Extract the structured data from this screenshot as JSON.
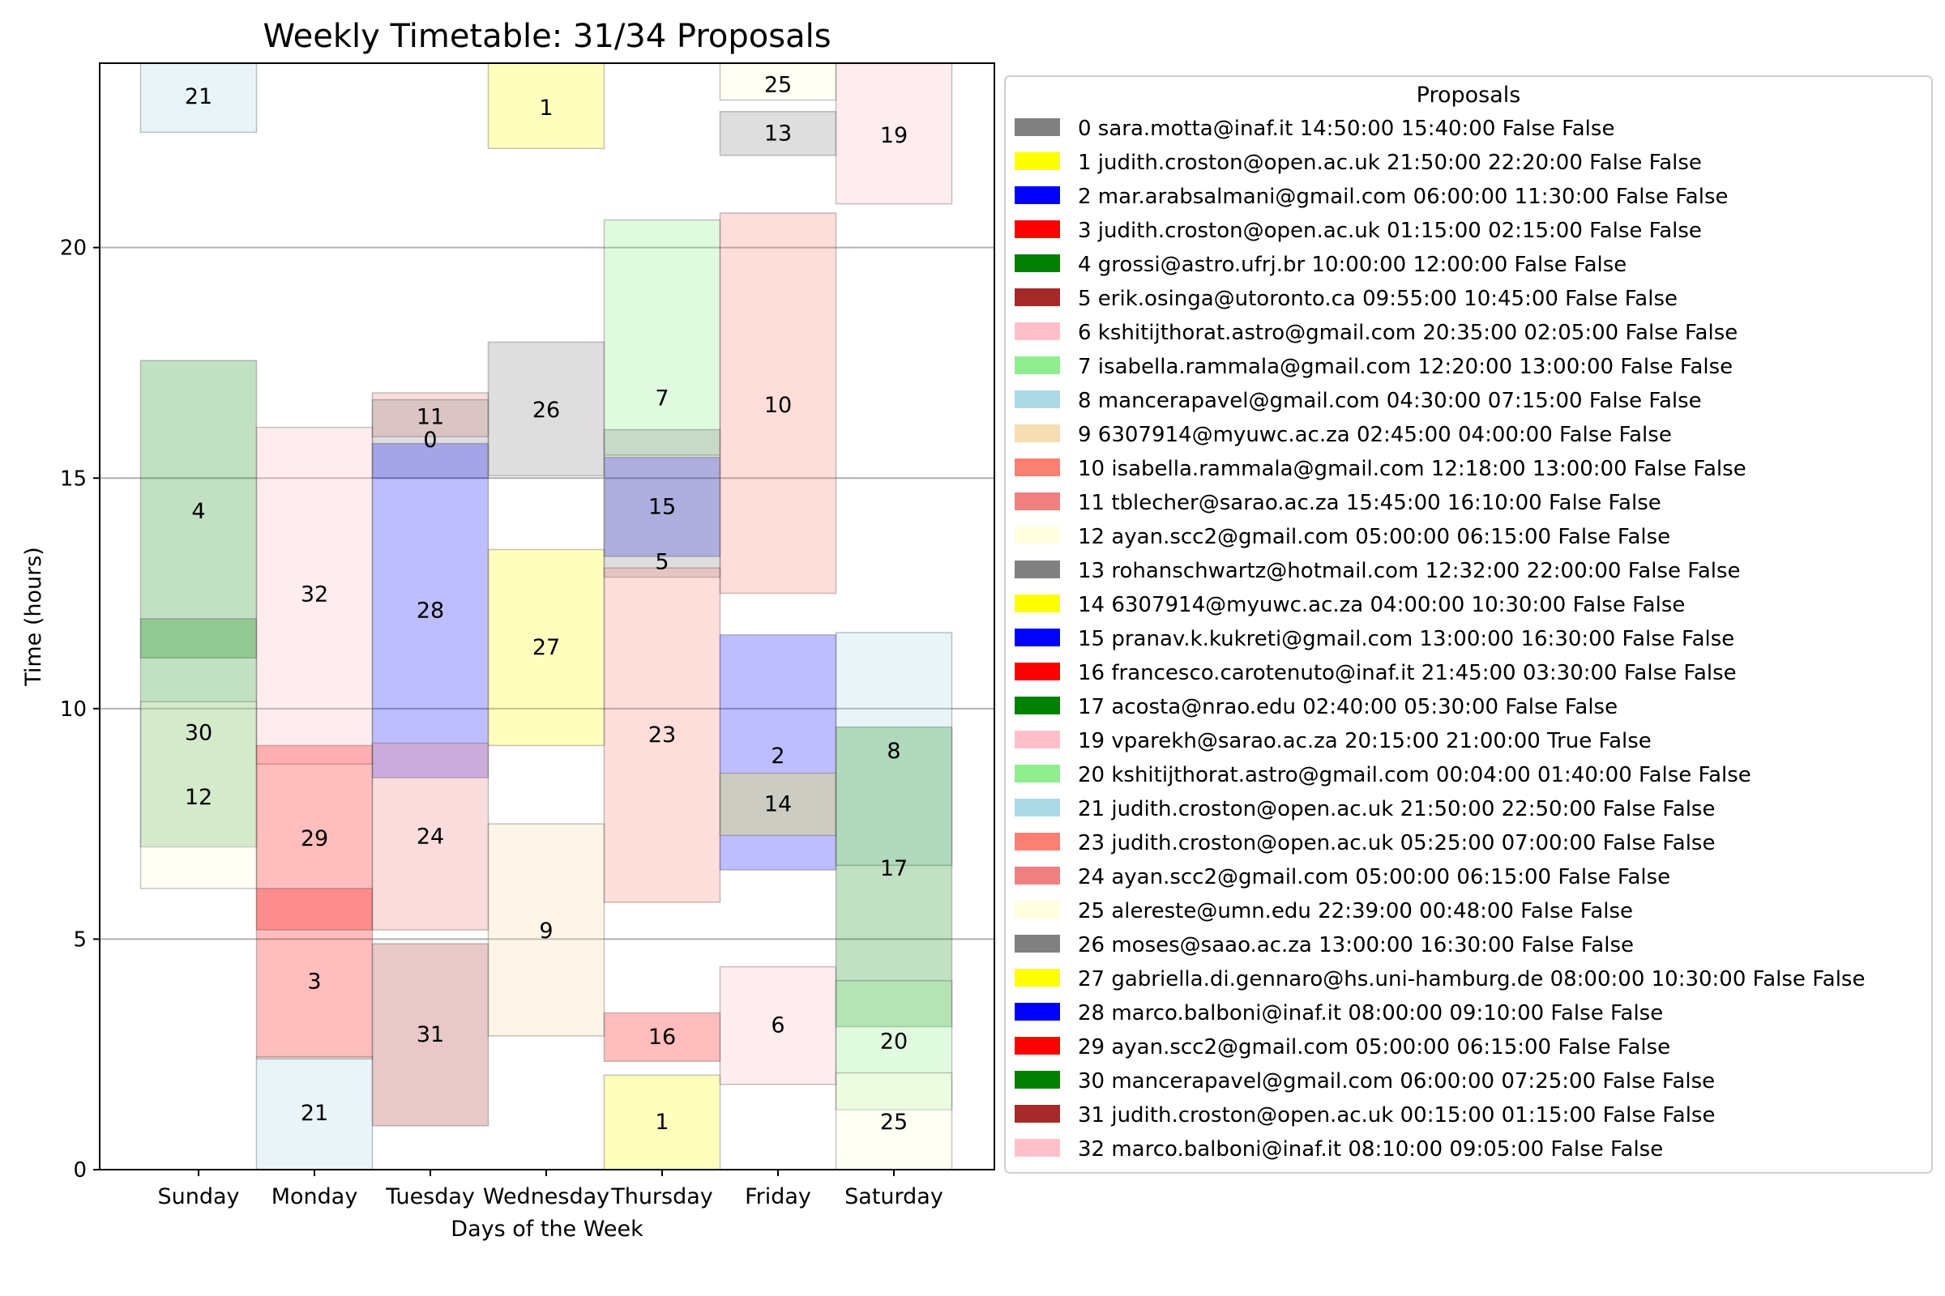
{
  "chart_data": {
    "type": "bar",
    "title": "Weekly Timetable: 31/34 Proposals",
    "xlabel": "Days of the Week",
    "ylabel": "Time (hours)",
    "ylim": [
      0,
      24
    ],
    "yticks": [
      0,
      5,
      10,
      15,
      20
    ],
    "grid": "horizontal",
    "categories": [
      "Sunday",
      "Monday",
      "Tuesday",
      "Wednesday",
      "Thursday",
      "Friday",
      "Saturday"
    ],
    "legend": {
      "title": "Proposals",
      "placement": "right",
      "entries": [
        {
          "color": "#808080",
          "label": "0 sara.motta@inaf.it 14:50:00 15:40:00 False False"
        },
        {
          "color": "#ffff00",
          "label": "1 judith.croston@open.ac.uk 21:50:00 22:20:00 False False"
        },
        {
          "color": "#0000ff",
          "label": "2 mar.arabsalmani@gmail.com 06:00:00 11:30:00 False False"
        },
        {
          "color": "#ff0000",
          "label": "3 judith.croston@open.ac.uk 01:15:00 02:15:00 False False"
        },
        {
          "color": "#008000",
          "label": "4 grossi@astro.ufrj.br 10:00:00 12:00:00 False False"
        },
        {
          "color": "#a52a2a",
          "label": "5 erik.osinga@utoronto.ca 09:55:00 10:45:00 False False"
        },
        {
          "color": "#ffc0cb",
          "label": "6 kshitijthorat.astro@gmail.com 20:35:00 02:05:00 False False"
        },
        {
          "color": "#90ee90",
          "label": "7 isabella.rammala@gmail.com 12:20:00 13:00:00 False False"
        },
        {
          "color": "#add8e6",
          "label": "8 mancerapavel@gmail.com 04:30:00 07:15:00 False False"
        },
        {
          "color": "#f5deb3",
          "label": "9 6307914@myuwc.ac.za 02:45:00 04:00:00 False False"
        },
        {
          "color": "#fa8072",
          "label": "10 isabella.rammala@gmail.com 12:18:00 13:00:00 False False"
        },
        {
          "color": "#f08080",
          "label": "11 tblecher@sarao.ac.za 15:45:00 16:10:00 False False"
        },
        {
          "color": "#ffffe0",
          "label": "12 ayan.scc2@gmail.com 05:00:00 06:15:00 False False"
        },
        {
          "color": "#808080",
          "label": "13 rohanschwartz@hotmail.com 12:32:00 22:00:00 False False"
        },
        {
          "color": "#ffff00",
          "label": "14 6307914@myuwc.ac.za 04:00:00 10:30:00 False False"
        },
        {
          "color": "#0000ff",
          "label": "15 pranav.k.kukreti@gmail.com 13:00:00 16:30:00 False False"
        },
        {
          "color": "#ff0000",
          "label": "16 francesco.carotenuto@inaf.it 21:45:00 03:30:00 False False"
        },
        {
          "color": "#008000",
          "label": "17 acosta@nrao.edu 02:40:00 05:30:00 False False"
        },
        {
          "color": "#ffc0cb",
          "label": "19 vparekh@sarao.ac.za 20:15:00 21:00:00 True False"
        },
        {
          "color": "#90ee90",
          "label": "20 kshitijthorat.astro@gmail.com 00:04:00 01:40:00 False False"
        },
        {
          "color": "#add8e6",
          "label": "21 judith.croston@open.ac.uk 21:50:00 22:50:00 False False"
        },
        {
          "color": "#fa8072",
          "label": "23 judith.croston@open.ac.uk 05:25:00 07:00:00 False False"
        },
        {
          "color": "#f08080",
          "label": "24 ayan.scc2@gmail.com 05:00:00 06:15:00 False False"
        },
        {
          "color": "#ffffe0",
          "label": "25 alereste@umn.edu 22:39:00 00:48:00 False False"
        },
        {
          "color": "#808080",
          "label": "26 moses@saao.ac.za 13:00:00 16:30:00 False False"
        },
        {
          "color": "#ffff00",
          "label": "27 gabriella.di.gennaro@hs.uni-hamburg.de 08:00:00 10:30:00 False False"
        },
        {
          "color": "#0000ff",
          "label": "28 marco.balboni@inaf.it 08:00:00 09:10:00 False False"
        },
        {
          "color": "#ff0000",
          "label": "29 ayan.scc2@gmail.com 05:00:00 06:15:00 False False"
        },
        {
          "color": "#008000",
          "label": "30 mancerapavel@gmail.com 06:00:00 07:25:00 False False"
        },
        {
          "color": "#a52a2a",
          "label": "31 judith.croston@open.ac.uk 00:15:00 01:15:00 False False"
        },
        {
          "color": "#ffc0cb",
          "label": "32 marco.balboni@inaf.it 08:10:00 09:05:00 False False"
        }
      ]
    },
    "blocks": [
      {
        "id": "21",
        "day": 0,
        "start": 22.5,
        "end": 24,
        "color": "#add8e6",
        "alpha": 0.28
      },
      {
        "id": "4",
        "day": 0,
        "start": 11.1,
        "end": 17.55,
        "color": "#008000",
        "alpha": 0.24
      },
      {
        "id": "30",
        "day": 0,
        "start": 7.0,
        "end": 11.95,
        "color": "#008000",
        "alpha": 0.24
      },
      {
        "id": "12",
        "day": 0,
        "start": 6.1,
        "end": 10.15,
        "color": "#ffffe0",
        "alpha": 0.3
      },
      {
        "id": "32",
        "day": 1,
        "start": 8.8,
        "end": 16.1,
        "color": "#ffc0cb",
        "alpha": 0.3
      },
      {
        "id": "29",
        "day": 1,
        "start": 5.2,
        "end": 9.2,
        "color": "#ff0000",
        "alpha": 0.26
      },
      {
        "id": "3",
        "day": 1,
        "start": 2.4,
        "end": 6.1,
        "color": "#ff0000",
        "alpha": 0.26
      },
      {
        "id": "21",
        "day": 1,
        "start": 0,
        "end": 2.45,
        "color": "#add8e6",
        "alpha": 0.28
      },
      {
        "id": "11",
        "day": 2,
        "start": 15.9,
        "end": 16.85,
        "color": "#f08080",
        "alpha": 0.28
      },
      {
        "id": "0",
        "day": 2,
        "start": 15.0,
        "end": 16.7,
        "color": "#808080",
        "alpha": 0.26
      },
      {
        "id": "28",
        "day": 2,
        "start": 8.5,
        "end": 15.75,
        "color": "#0000ff",
        "alpha": 0.26
      },
      {
        "id": "24",
        "day": 2,
        "start": 5.2,
        "end": 9.25,
        "color": "#f08080",
        "alpha": 0.28
      },
      {
        "id": "31",
        "day": 2,
        "start": 0.95,
        "end": 4.9,
        "color": "#a52a2a",
        "alpha": 0.26
      },
      {
        "id": "1",
        "day": 3,
        "start": 22.15,
        "end": 24,
        "color": "#ffff00",
        "alpha": 0.26
      },
      {
        "id": "26",
        "day": 3,
        "start": 15.05,
        "end": 17.95,
        "color": "#808080",
        "alpha": 0.26
      },
      {
        "id": "27",
        "day": 3,
        "start": 9.2,
        "end": 13.45,
        "color": "#ffff00",
        "alpha": 0.26
      },
      {
        "id": "9",
        "day": 3,
        "start": 2.9,
        "end": 7.5,
        "color": "#f5deb3",
        "alpha": 0.3
      },
      {
        "id": "7",
        "day": 4,
        "start": 15.5,
        "end": 20.6,
        "color": "#90ee90",
        "alpha": 0.28
      },
      {
        "id": "15",
        "day": 4,
        "start": 13.3,
        "end": 15.45,
        "color": "#0000ff",
        "alpha": 0.26
      },
      {
        "id": "5",
        "day": 4,
        "start": 12.85,
        "end": 16.05,
        "color": "#808080",
        "alpha": 0.26
      },
      {
        "id": "23",
        "day": 4,
        "start": 5.8,
        "end": 13.05,
        "color": "#fa8072",
        "alpha": 0.26
      },
      {
        "id": "16",
        "day": 4,
        "start": 2.35,
        "end": 3.4,
        "color": "#ff0000",
        "alpha": 0.26
      },
      {
        "id": "1",
        "day": 4,
        "start": 0,
        "end": 2.05,
        "color": "#ffff00",
        "alpha": 0.26
      },
      {
        "id": "25",
        "day": 5,
        "start": 23.2,
        "end": 24,
        "color": "#ffffe0",
        "alpha": 0.35
      },
      {
        "id": "13",
        "day": 5,
        "start": 22.0,
        "end": 22.95,
        "color": "#808080",
        "alpha": 0.26
      },
      {
        "id": "10",
        "day": 5,
        "start": 12.5,
        "end": 20.75,
        "color": "#fa8072",
        "alpha": 0.26
      },
      {
        "id": "2",
        "day": 5,
        "start": 6.5,
        "end": 11.6,
        "color": "#0000ff",
        "alpha": 0.26
      },
      {
        "id": "14",
        "day": 5,
        "start": 7.25,
        "end": 8.6,
        "color": "#ffff00",
        "alpha": 0.24
      },
      {
        "id": "6",
        "day": 5,
        "start": 1.85,
        "end": 4.4,
        "color": "#ffc0cb",
        "alpha": 0.3
      },
      {
        "id": "19",
        "day": 6,
        "start": 20.95,
        "end": 24,
        "color": "#ffc0cb",
        "alpha": 0.3
      },
      {
        "id": "8",
        "day": 6,
        "start": 6.6,
        "end": 11.65,
        "color": "#add8e6",
        "alpha": 0.28
      },
      {
        "id": "17",
        "day": 6,
        "start": 3.1,
        "end": 9.6,
        "color": "#008000",
        "alpha": 0.24
      },
      {
        "id": "20",
        "day": 6,
        "start": 1.3,
        "end": 4.1,
        "color": "#90ee90",
        "alpha": 0.28
      },
      {
        "id": "25",
        "day": 6,
        "start": 0,
        "end": 2.1,
        "color": "#ffffe0",
        "alpha": 0.35
      }
    ],
    "block_labels": [
      {
        "text": "21",
        "day": 0,
        "y": 23.3
      },
      {
        "text": "4",
        "day": 0,
        "y": 14.3
      },
      {
        "text": "30",
        "day": 0,
        "y": 9.5
      },
      {
        "text": "12",
        "day": 0,
        "y": 8.1
      },
      {
        "text": "32",
        "day": 1,
        "y": 12.5
      },
      {
        "text": "29",
        "day": 1,
        "y": 7.2
      },
      {
        "text": "3",
        "day": 1,
        "y": 4.1
      },
      {
        "text": "21",
        "day": 1,
        "y": 1.25
      },
      {
        "text": "11",
        "day": 2,
        "y": 16.35
      },
      {
        "text": "0",
        "day": 2,
        "y": 15.85
      },
      {
        "text": "28",
        "day": 2,
        "y": 12.15
      },
      {
        "text": "24",
        "day": 2,
        "y": 7.25
      },
      {
        "text": "31",
        "day": 2,
        "y": 2.95
      },
      {
        "text": "1",
        "day": 3,
        "y": 23.05
      },
      {
        "text": "26",
        "day": 3,
        "y": 16.5
      },
      {
        "text": "27",
        "day": 3,
        "y": 11.35
      },
      {
        "text": "9",
        "day": 3,
        "y": 5.2
      },
      {
        "text": "7",
        "day": 4,
        "y": 16.75
      },
      {
        "text": "15",
        "day": 4,
        "y": 14.4
      },
      {
        "text": "5",
        "day": 4,
        "y": 13.2
      },
      {
        "text": "23",
        "day": 4,
        "y": 9.45
      },
      {
        "text": "16",
        "day": 4,
        "y": 2.9
      },
      {
        "text": "1",
        "day": 4,
        "y": 1.05
      },
      {
        "text": "25",
        "day": 5,
        "y": 23.55
      },
      {
        "text": "13",
        "day": 5,
        "y": 22.5
      },
      {
        "text": "10",
        "day": 5,
        "y": 16.6
      },
      {
        "text": "2",
        "day": 5,
        "y": 9.0
      },
      {
        "text": "14",
        "day": 5,
        "y": 7.95
      },
      {
        "text": "6",
        "day": 5,
        "y": 3.15
      },
      {
        "text": "19",
        "day": 6,
        "y": 22.45
      },
      {
        "text": "8",
        "day": 6,
        "y": 9.1
      },
      {
        "text": "17",
        "day": 6,
        "y": 6.55
      },
      {
        "text": "20",
        "day": 6,
        "y": 2.8
      },
      {
        "text": "25",
        "day": 6,
        "y": 1.05
      }
    ]
  }
}
